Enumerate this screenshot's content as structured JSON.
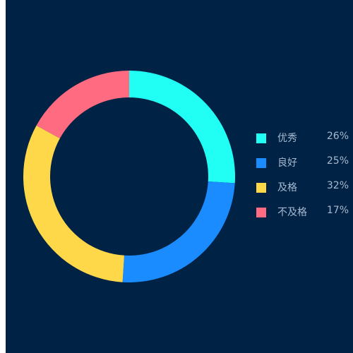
{
  "chart_data": {
    "type": "pie",
    "variant": "donut",
    "categories": [
      "优秀",
      "良好",
      "及格",
      "不及格"
    ],
    "values": [
      26,
      25,
      32,
      17
    ],
    "labels": [
      "26%",
      "25%",
      "32%",
      "17%"
    ],
    "colors": [
      "#21fff4",
      "#1a8cff",
      "#ffd84a",
      "#ff6b81"
    ],
    "legend_position": "right"
  },
  "legend": {
    "items": [
      {
        "label": "优秀",
        "value": "26%",
        "color": "#21fff4"
      },
      {
        "label": "良好",
        "value": "25%",
        "color": "#1a8cff"
      },
      {
        "label": "及格",
        "value": "32%",
        "color": "#ffd84a"
      },
      {
        "label": "不及格",
        "value": "17%",
        "color": "#ff6b81"
      }
    ]
  },
  "background_color": "#002244"
}
